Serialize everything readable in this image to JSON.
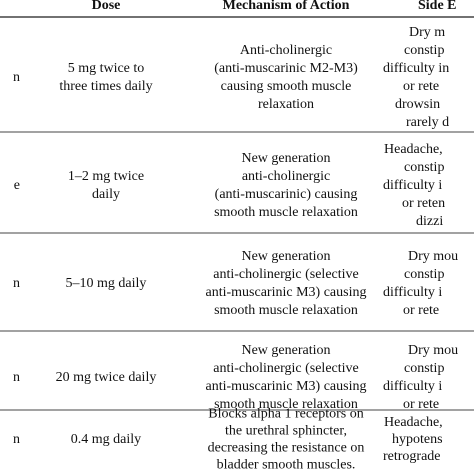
{
  "table": {
    "header": [
      "Dose",
      "Mechanism of Action",
      "Side E"
    ],
    "rows": [
      {
        "first": "n",
        "dose": [
          "5 mg twice to",
          "three times daily"
        ],
        "mechanism": [
          "Anti-cholinergic",
          "(anti-muscarinic M2-M3)",
          "causing smooth muscle",
          "relaxation"
        ],
        "side": [
          "Dry m",
          "constip",
          "difficulty in",
          "or rete",
          "drowsin",
          "rarely d"
        ]
      },
      {
        "first": "e",
        "dose": [
          "1–2 mg twice",
          "daily"
        ],
        "mechanism": [
          "New generation",
          "anti-cholinergic",
          "(anti-muscarinic) causing",
          "smooth muscle relaxation"
        ],
        "side": [
          "Headache,",
          "constip",
          "difficulty i",
          "or reten",
          "dizzi"
        ]
      },
      {
        "first": "n",
        "dose": [
          "5–10 mg daily"
        ],
        "mechanism": [
          "New generation",
          "anti-cholinergic (selective",
          "anti-muscarinic M3) causing",
          "smooth muscle relaxation"
        ],
        "side": [
          "Dry mou",
          "constip",
          "difficulty i",
          "or rete"
        ]
      },
      {
        "first": "n",
        "dose": [
          "20 mg twice daily"
        ],
        "mechanism": [
          "New generation",
          "anti-cholinergic (selective",
          "anti-muscarinic M3) causing",
          "smooth muscle relaxation"
        ],
        "side": [
          "Dry mou",
          "constip",
          "difficulty i",
          "or rete"
        ]
      },
      {
        "first": "n",
        "dose": [
          "0.4 mg daily"
        ],
        "mechanism": [
          "Blocks alpha 1 receptors on",
          "the urethral sphincter,",
          "decreasing the resistance on",
          "bladder smooth muscles."
        ],
        "side": [
          "Headache,",
          "hypotens",
          "retrograde"
        ]
      }
    ]
  }
}
